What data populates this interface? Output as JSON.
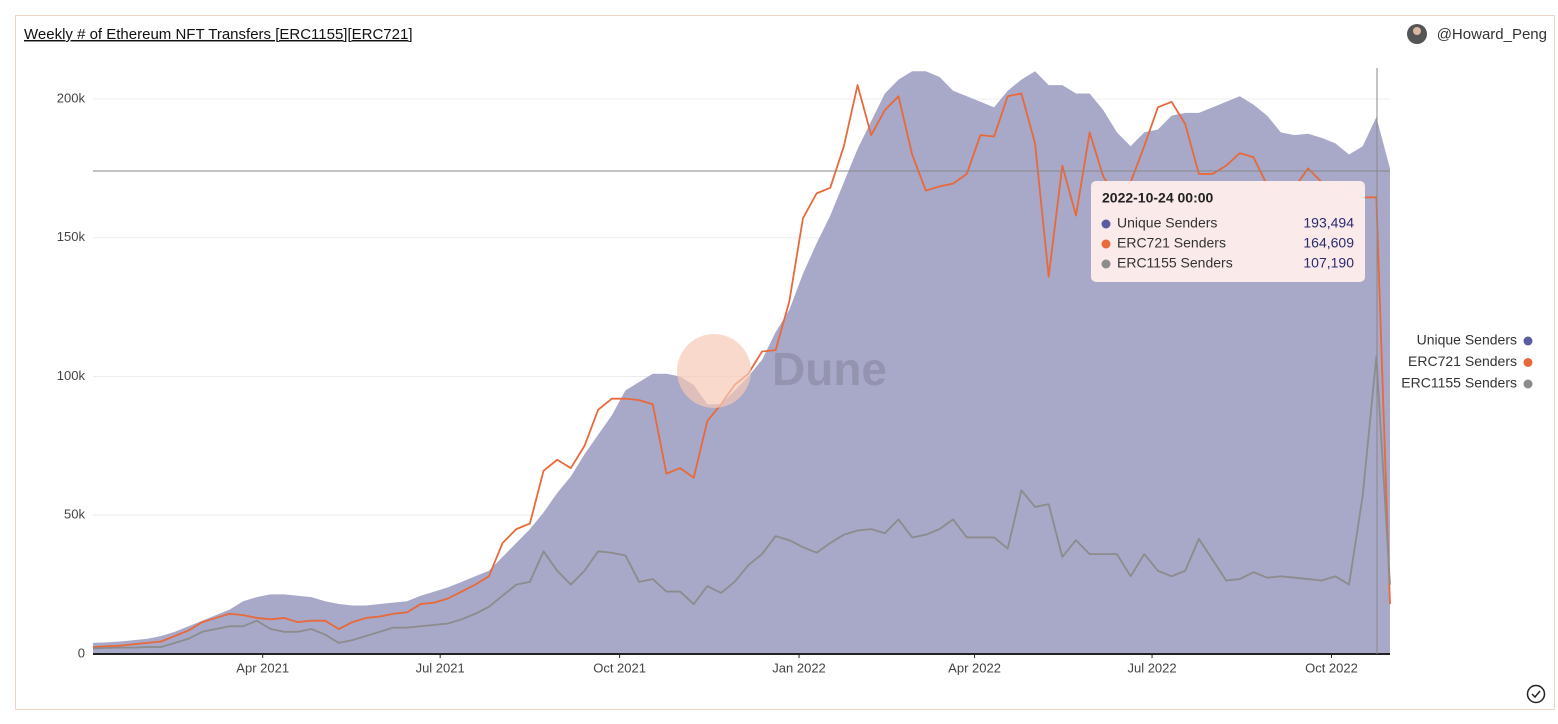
{
  "chart_data": {
    "type": "area_line",
    "title": "Weekly # of Ethereum NFT Transfers [ERC1155][ERC721]",
    "author": "@Howard_Peng",
    "watermark": "Dune",
    "x": [
      "2021-01-04",
      "2021-01-11",
      "2021-01-18",
      "2021-01-25",
      "2021-02-01",
      "2021-02-08",
      "2021-02-15",
      "2021-02-22",
      "2021-03-01",
      "2021-03-08",
      "2021-03-15",
      "2021-03-22",
      "2021-03-29",
      "2021-04-05",
      "2021-04-12",
      "2021-04-19",
      "2021-04-26",
      "2021-05-03",
      "2021-05-10",
      "2021-05-17",
      "2021-05-24",
      "2021-05-31",
      "2021-06-07",
      "2021-06-14",
      "2021-06-21",
      "2021-06-28",
      "2021-07-05",
      "2021-07-12",
      "2021-07-19",
      "2021-07-26",
      "2021-08-02",
      "2021-08-09",
      "2021-08-16",
      "2021-08-23",
      "2021-08-30",
      "2021-09-06",
      "2021-09-13",
      "2021-09-20",
      "2021-09-27",
      "2021-10-04",
      "2021-10-11",
      "2021-10-18",
      "2021-10-25",
      "2021-11-01",
      "2021-11-08",
      "2021-11-15",
      "2021-11-22",
      "2021-11-29",
      "2021-12-06",
      "2021-12-13",
      "2021-12-20",
      "2021-12-27",
      "2022-01-03",
      "2022-01-10",
      "2022-01-17",
      "2022-01-24",
      "2022-01-31",
      "2022-02-07",
      "2022-02-14",
      "2022-02-21",
      "2022-02-28",
      "2022-03-07",
      "2022-03-14",
      "2022-03-21",
      "2022-03-28",
      "2022-04-04",
      "2022-04-11",
      "2022-04-18",
      "2022-04-25",
      "2022-05-02",
      "2022-05-09",
      "2022-05-16",
      "2022-05-23",
      "2022-05-30",
      "2022-06-06",
      "2022-06-13",
      "2022-06-20",
      "2022-06-27",
      "2022-07-04",
      "2022-07-11",
      "2022-07-18",
      "2022-07-25",
      "2022-08-01",
      "2022-08-08",
      "2022-08-15",
      "2022-08-22",
      "2022-08-29",
      "2022-09-05",
      "2022-09-12",
      "2022-09-19",
      "2022-09-26",
      "2022-10-03",
      "2022-10-10",
      "2022-10-17",
      "2022-10-24",
      "2022-10-31"
    ],
    "xlim": [
      "2021-01-04",
      "2022-10-31"
    ],
    "xticks": [
      {
        "value": "2021-04-01",
        "label": "Apr 2021"
      },
      {
        "value": "2021-07-01",
        "label": "Jul 2021"
      },
      {
        "value": "2021-10-01",
        "label": "Oct 2021"
      },
      {
        "value": "2022-01-01",
        "label": "Jan 2022"
      },
      {
        "value": "2022-04-01",
        "label": "Apr 2022"
      },
      {
        "value": "2022-07-01",
        "label": "Jul 2022"
      },
      {
        "value": "2022-10-01",
        "label": "Oct 2022"
      }
    ],
    "ylim": [
      0,
      215000
    ],
    "yticks": [
      0,
      {
        "value": 50000,
        "label": "50k"
      },
      {
        "value": 100000,
        "label": "100k"
      },
      {
        "value": 150000,
        "label": "150k"
      },
      {
        "value": 200000,
        "label": "200k"
      }
    ],
    "grid": true,
    "legend": "right",
    "series": [
      {
        "name": "Unique Senders",
        "kind": "area",
        "color": "#a8a8c9",
        "legend_color": "#5b5b9f",
        "values": [
          4000,
          4200,
          4500,
          5000,
          5500,
          6500,
          8000,
          10000,
          12000,
          14000,
          16000,
          19000,
          20500,
          21500,
          21500,
          21000,
          20500,
          19000,
          18000,
          17500,
          17500,
          18000,
          18500,
          19000,
          21000,
          22500,
          24000,
          26000,
          28000,
          30000,
          35000,
          40000,
          45000,
          51000,
          58000,
          64000,
          72000,
          79000,
          86000,
          95000,
          98000,
          101000,
          101000,
          100000,
          97000,
          90000,
          90000,
          95000,
          100000,
          106000,
          116000,
          124000,
          137000,
          148000,
          158000,
          170000,
          182000,
          192000,
          202000,
          207000,
          210000,
          210000,
          208000,
          203000,
          201000,
          199000,
          197000,
          203000,
          207000,
          210000,
          205000,
          205000,
          202000,
          202000,
          196000,
          188000,
          183000,
          188000,
          189000,
          194000,
          195000,
          195000,
          197000,
          199000,
          201000,
          198000,
          194000,
          188000,
          187000,
          187500,
          186000,
          184000,
          180000,
          183000,
          193494,
          175000
        ]
      },
      {
        "name": "ERC721 Senders",
        "kind": "line",
        "color": "#e8693a",
        "values": [
          2500,
          2800,
          3000,
          3500,
          4000,
          4500,
          6500,
          8500,
          11500,
          13000,
          14500,
          14000,
          13000,
          12500,
          13000,
          11500,
          12000,
          12000,
          9000,
          11500,
          13000,
          13500,
          14500,
          15000,
          18000,
          18500,
          20000,
          22500,
          25000,
          28000,
          40000,
          45000,
          47000,
          66000,
          70000,
          67000,
          75000,
          88000,
          92000,
          92000,
          91500,
          90000,
          65000,
          67000,
          63500,
          84000,
          90000,
          97000,
          101000,
          109000,
          109500,
          127000,
          157000,
          166000,
          168000,
          183000,
          205000,
          187000,
          196000,
          201000,
          180000,
          167000,
          168500,
          169500,
          173000,
          187000,
          186500,
          201000,
          202000,
          184000,
          136000,
          176000,
          158000,
          188000,
          172000,
          165000,
          170000,
          183000,
          197000,
          199000,
          191000,
          173000,
          173000,
          176000,
          180500,
          179000,
          169000,
          165000,
          168000,
          175000,
          170000,
          169000,
          166000,
          164500,
          164609,
          18000
        ]
      },
      {
        "name": "ERC1155 Senders",
        "kind": "line",
        "color": "#8c8c8c",
        "values": [
          2000,
          2200,
          2300,
          2300,
          2500,
          2500,
          4000,
          5500,
          8000,
          9000,
          10000,
          10000,
          12000,
          9000,
          8000,
          8000,
          9000,
          7000,
          4000,
          5000,
          6500,
          8000,
          9500,
          9500,
          10000,
          10500,
          11000,
          12500,
          14500,
          17000,
          21000,
          25000,
          26000,
          37000,
          30000,
          25000,
          30000,
          37000,
          36500,
          35500,
          26000,
          27000,
          22500,
          22500,
          18000,
          24500,
          22000,
          26000,
          32000,
          36000,
          42500,
          41000,
          38500,
          36500,
          40000,
          43000,
          44500,
          45000,
          43500,
          48500,
          42000,
          43000,
          45000,
          48500,
          42000,
          42000,
          42000,
          38000,
          59000,
          53000,
          54000,
          35000,
          41000,
          36000,
          36000,
          36000,
          28000,
          36000,
          30000,
          28000,
          30000,
          41500,
          34000,
          26500,
          27000,
          29500,
          27500,
          28000,
          27500,
          27000,
          26500,
          28000,
          25000,
          57000,
          107190,
          25000
        ]
      }
    ],
    "tooltip": {
      "date": "2022-10-24 00:00",
      "rows": [
        {
          "value": 193494,
          "label": "193,494"
        },
        {
          "value": 164609,
          "label": "164,609"
        },
        {
          "value": 107190,
          "label": "107,190"
        }
      ]
    }
  }
}
